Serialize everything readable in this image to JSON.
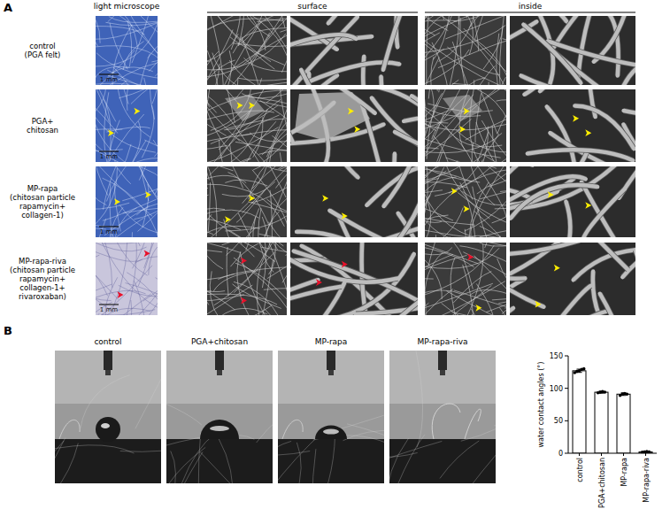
{
  "panel_a": {
    "label": "A",
    "column_headers": [
      "light microscope",
      "surface",
      "inside"
    ],
    "rows": [
      {
        "label_lines": [
          "control",
          "(PGA  felt)"
        ]
      },
      {
        "label_lines": [
          "PGA+",
          "chitosan"
        ]
      },
      {
        "label_lines": [
          "MP-rapa",
          "(chitosan particle",
          " rapamycin+",
          " collagen-1)"
        ]
      },
      {
        "label_lines": [
          "MP-rapa-riva",
          "(chitosan particle",
          "rapamycin+",
          "collagen-1+",
          "rivaroxaban)"
        ]
      }
    ],
    "scale_bar": "1 mm"
  },
  "panel_b": {
    "label": "B",
    "image_titles": [
      "control",
      "PGA+chitosan",
      "MP-rapa",
      "MP-rapa-riva"
    ]
  },
  "chart_data": {
    "type": "bar",
    "y_label": "water contact angles (°)",
    "categories": [
      "control",
      "PGA+chitosan",
      "MP-rapa",
      "MP-rapa-riva"
    ],
    "values": [
      127,
      94,
      91,
      2
    ],
    "errors": [
      2.5,
      1.5,
      2,
      0.5
    ],
    "points": [
      [
        124,
        126,
        127,
        129,
        130
      ],
      [
        93,
        94,
        95,
        94
      ],
      [
        89,
        91,
        92,
        91
      ],
      [
        1.5,
        2,
        2.5,
        2
      ]
    ],
    "color": "#ffffff",
    "ylim": [
      0,
      150
    ],
    "yticks": [
      0,
      50,
      100,
      150
    ]
  }
}
